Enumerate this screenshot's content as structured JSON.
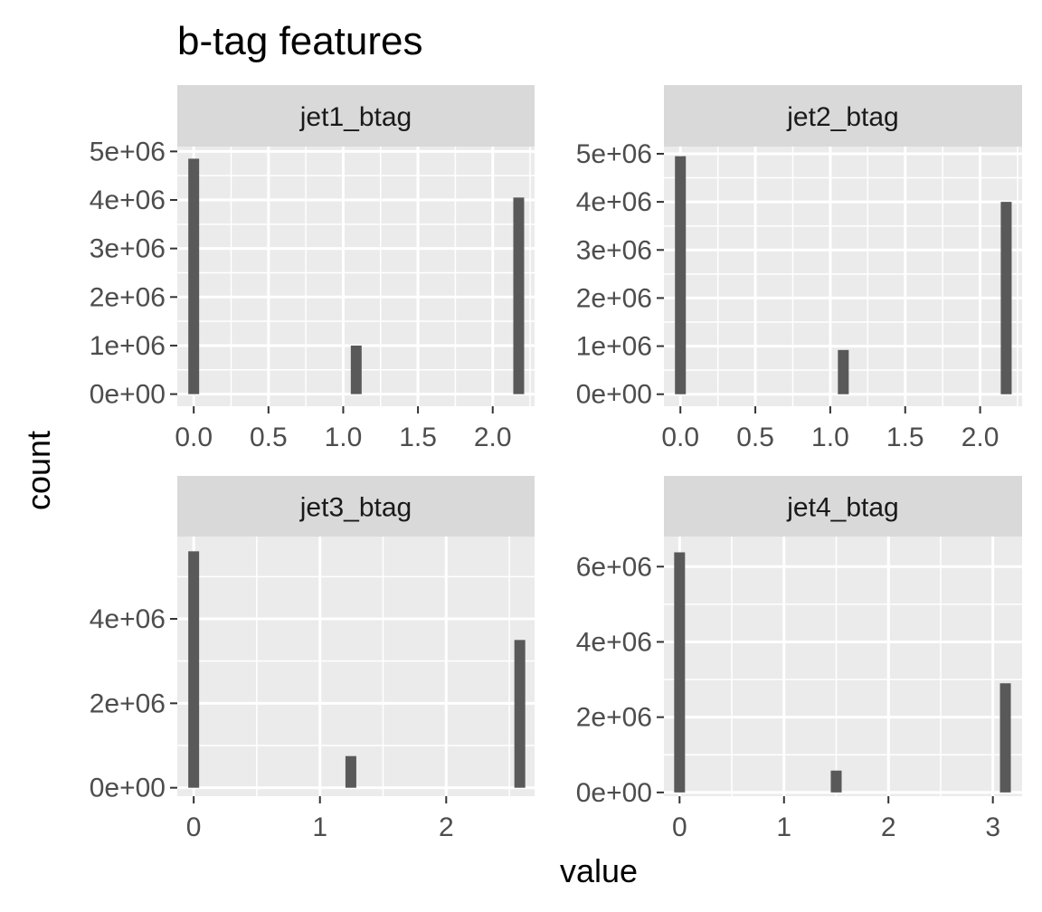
{
  "chart_data": {
    "type": "bar",
    "title": "b-tag features",
    "xlabel": "value",
    "ylabel": "count",
    "grid": true,
    "colors": {
      "panel_background": "#ebebeb",
      "strip_background": "#d9d9d9",
      "grid": "#ffffff",
      "bar": "#595959",
      "tick_text": "#4d4d4d",
      "tick_mark": "#333333"
    },
    "panels": [
      {
        "name": "jet1_btag",
        "xlim": [
          -0.11,
          2.28
        ],
        "ylim": [
          -250000,
          5100000
        ],
        "xticks": [
          0.0,
          0.5,
          1.0,
          1.5,
          2.0
        ],
        "xtick_labels": [
          "0.0",
          "0.5",
          "1.0",
          "1.5",
          "2.0"
        ],
        "yticks": [
          0,
          1000000,
          2000000,
          3000000,
          4000000,
          5000000
        ],
        "ytick_labels": [
          "0e+00",
          "1e+06",
          "2e+06",
          "3e+06",
          "4e+06",
          "5e+06"
        ],
        "bar_width": 0.0725,
        "bars": [
          {
            "x": 0.0,
            "count": 4850000
          },
          {
            "x": 1.087,
            "count": 1000000
          },
          {
            "x": 2.174,
            "count": 4050000
          }
        ]
      },
      {
        "name": "jet2_btag",
        "xlim": [
          -0.11,
          2.28
        ],
        "ylim": [
          -250000,
          5150000
        ],
        "xticks": [
          0.0,
          0.5,
          1.0,
          1.5,
          2.0
        ],
        "xtick_labels": [
          "0.0",
          "0.5",
          "1.0",
          "1.5",
          "2.0"
        ],
        "yticks": [
          0,
          1000000,
          2000000,
          3000000,
          4000000,
          5000000
        ],
        "ytick_labels": [
          "0e+00",
          "1e+06",
          "2e+06",
          "3e+06",
          "4e+06",
          "5e+06"
        ],
        "bar_width": 0.0725,
        "bars": [
          {
            "x": 0.0,
            "count": 4950000
          },
          {
            "x": 1.087,
            "count": 920000
          },
          {
            "x": 2.174,
            "count": 4000000
          }
        ]
      },
      {
        "name": "jet3_btag",
        "xlim": [
          -0.13,
          2.7
        ],
        "ylim": [
          -200000,
          5950000
        ],
        "xticks": [
          0,
          1,
          2
        ],
        "xtick_labels": [
          "0",
          "1",
          "2"
        ],
        "yticks": [
          0,
          2000000,
          4000000
        ],
        "ytick_labels": [
          "0e+00",
          "2e+06",
          "4e+06"
        ],
        "bar_width": 0.086,
        "bars": [
          {
            "x": 0.0,
            "count": 5600000
          },
          {
            "x": 1.245,
            "count": 750000
          },
          {
            "x": 2.583,
            "count": 3500000
          }
        ]
      },
      {
        "name": "jet4_btag",
        "xlim": [
          -0.15,
          3.28
        ],
        "ylim": [
          -100000,
          6800000
        ],
        "xticks": [
          0,
          1,
          2,
          3
        ],
        "xtick_labels": [
          "0",
          "1",
          "2",
          "3"
        ],
        "yticks": [
          0,
          2000000,
          4000000,
          6000000
        ],
        "ytick_labels": [
          "0e+00",
          "2e+06",
          "4e+06",
          "6e+06"
        ],
        "bar_width": 0.104,
        "bars": [
          {
            "x": 0.0,
            "count": 6380000
          },
          {
            "x": 1.5,
            "count": 580000
          },
          {
            "x": 3.12,
            "count": 2900000
          }
        ]
      }
    ]
  }
}
